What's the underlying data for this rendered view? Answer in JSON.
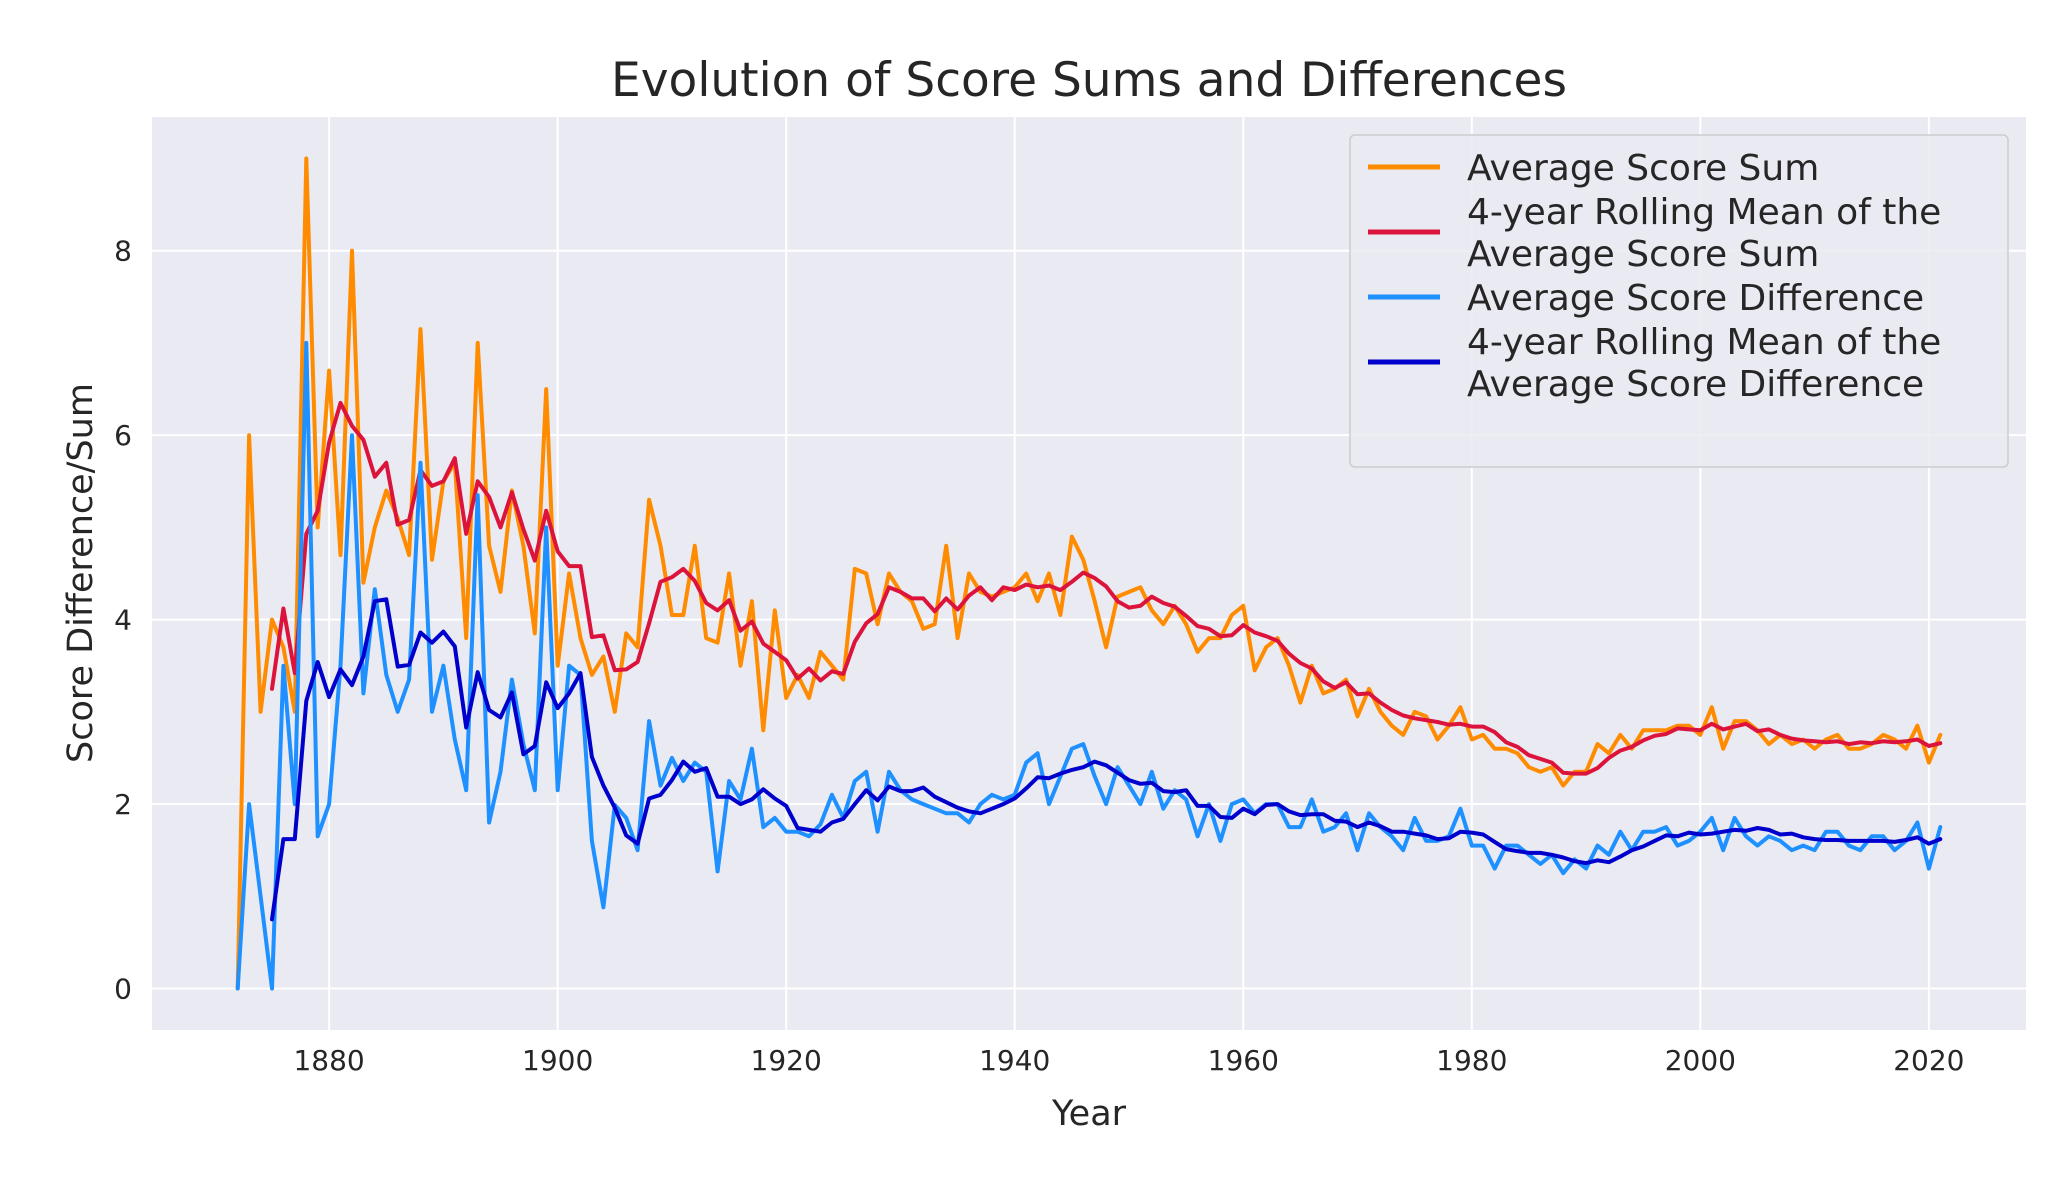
{
  "chart_data": {
    "type": "line",
    "title": "Evolution of Score Sums and Differences",
    "xlabel": "Year",
    "ylabel": "Score Difference/Sum",
    "xlim": [
      1864.5,
      2028.5
    ],
    "ylim": [
      -0.45,
      9.45
    ],
    "x_ticks": [
      1880,
      1900,
      1920,
      1940,
      1960,
      1980,
      2000,
      2020
    ],
    "y_ticks": [
      0,
      2,
      4,
      6,
      8
    ],
    "grid": true,
    "legend_position": "top-right",
    "x": [
      1872,
      1873,
      1874,
      1875,
      1876,
      1877,
      1878,
      1879,
      1880,
      1881,
      1882,
      1883,
      1884,
      1885,
      1886,
      1887,
      1888,
      1889,
      1890,
      1891,
      1892,
      1893,
      1894,
      1895,
      1896,
      1897,
      1898,
      1899,
      1900,
      1901,
      1902,
      1903,
      1904,
      1905,
      1906,
      1907,
      1908,
      1909,
      1910,
      1911,
      1912,
      1913,
      1914,
      1915,
      1916,
      1917,
      1918,
      1919,
      1920,
      1921,
      1922,
      1923,
      1924,
      1925,
      1926,
      1927,
      1928,
      1929,
      1930,
      1931,
      1932,
      1933,
      1934,
      1935,
      1936,
      1937,
      1938,
      1939,
      1940,
      1941,
      1942,
      1943,
      1944,
      1945,
      1946,
      1947,
      1948,
      1949,
      1950,
      1951,
      1952,
      1953,
      1954,
      1955,
      1956,
      1957,
      1958,
      1959,
      1960,
      1961,
      1962,
      1963,
      1964,
      1965,
      1966,
      1967,
      1968,
      1969,
      1970,
      1971,
      1972,
      1973,
      1974,
      1975,
      1976,
      1977,
      1978,
      1979,
      1980,
      1981,
      1982,
      1983,
      1984,
      1985,
      1986,
      1987,
      1988,
      1989,
      1990,
      1991,
      1992,
      1993,
      1994,
      1995,
      1996,
      1997,
      1998,
      1999,
      2000,
      2001,
      2002,
      2003,
      2004,
      2005,
      2006,
      2007,
      2008,
      2009,
      2010,
      2011,
      2012,
      2013,
      2014,
      2015,
      2016,
      2017,
      2018,
      2019,
      2020,
      2021
    ],
    "series": [
      {
        "name": "Average Score Sum",
        "color": "#ff8c00",
        "values": [
          0,
          6.0,
          3.0,
          4.0,
          3.7,
          3.0,
          9.0,
          5.0,
          6.7,
          4.7,
          8.0,
          4.4,
          5.0,
          5.4,
          5.1,
          4.7,
          7.15,
          4.65,
          5.5,
          5.7,
          3.8,
          7.0,
          4.8,
          4.3,
          5.4,
          4.8,
          3.85,
          6.5,
          3.5,
          4.5,
          3.8,
          3.4,
          3.6,
          3.0,
          3.85,
          3.7,
          5.3,
          4.8,
          4.05,
          4.05,
          4.8,
          3.8,
          3.75,
          4.5,
          3.5,
          4.2,
          2.8,
          4.1,
          3.15,
          3.4,
          3.15,
          3.65,
          3.5,
          3.35,
          4.55,
          4.5,
          3.95,
          4.5,
          4.3,
          4.2,
          3.9,
          3.95,
          4.8,
          3.8,
          4.5,
          4.3,
          4.25,
          4.3,
          4.35,
          4.5,
          4.2,
          4.5,
          4.05,
          4.9,
          4.65,
          4.2,
          3.7,
          4.25,
          4.3,
          4.35,
          4.1,
          3.95,
          4.15,
          3.95,
          3.65,
          3.8,
          3.8,
          4.05,
          4.15,
          3.45,
          3.7,
          3.8,
          3.5,
          3.1,
          3.5,
          3.2,
          3.25,
          3.35,
          2.95,
          3.25,
          3.0,
          2.85,
          2.75,
          3.0,
          2.95,
          2.7,
          2.85,
          3.05,
          2.7,
          2.75,
          2.6,
          2.6,
          2.55,
          2.4,
          2.35,
          2.4,
          2.2,
          2.35,
          2.35,
          2.65,
          2.55,
          2.75,
          2.6,
          2.8,
          2.8,
          2.8,
          2.85,
          2.85,
          2.75,
          3.05,
          2.6,
          2.9,
          2.9,
          2.8,
          2.65,
          2.75,
          2.65,
          2.7,
          2.6,
          2.7,
          2.75,
          2.6,
          2.6,
          2.65,
          2.75,
          2.7,
          2.6,
          2.85,
          2.45,
          2.75
        ]
      },
      {
        "name": "4-year Rolling Mean of the Average Score Sum",
        "color": "#dc143c",
        "values": [
          null,
          null,
          null,
          3.25,
          4.12,
          3.42,
          4.93,
          5.18,
          5.92,
          6.35,
          6.1,
          5.95,
          5.55,
          5.7,
          5.03,
          5.08,
          5.62,
          5.45,
          5.5,
          5.75,
          4.93,
          5.5,
          5.33,
          5.0,
          5.38,
          4.98,
          4.64,
          5.18,
          4.74,
          4.58,
          4.58,
          3.81,
          3.83,
          3.45,
          3.46,
          3.54,
          3.96,
          4.41,
          4.46,
          4.55,
          4.42,
          4.18,
          4.1,
          4.21,
          3.88,
          3.98,
          3.74,
          3.65,
          3.56,
          3.36,
          3.47,
          3.34,
          3.44,
          3.41,
          3.76,
          3.96,
          4.06,
          4.35,
          4.3,
          4.23,
          4.23,
          4.09,
          4.23,
          4.11,
          4.26,
          4.35,
          4.21,
          4.35,
          4.32,
          4.38,
          4.35,
          4.37,
          4.32,
          4.41,
          4.51,
          4.45,
          4.36,
          4.2,
          4.13,
          4.15,
          4.25,
          4.18,
          4.14,
          4.04,
          3.93,
          3.9,
          3.82,
          3.83,
          3.94,
          3.86,
          3.82,
          3.77,
          3.63,
          3.53,
          3.47,
          3.33,
          3.26,
          3.32,
          3.19,
          3.2,
          3.1,
          3.02,
          2.96,
          2.93,
          2.91,
          2.89,
          2.86,
          2.87,
          2.84,
          2.84,
          2.78,
          2.67,
          2.62,
          2.53,
          2.49,
          2.45,
          2.34,
          2.33,
          2.33,
          2.39,
          2.5,
          2.58,
          2.62,
          2.69,
          2.74,
          2.76,
          2.82,
          2.81,
          2.8,
          2.87,
          2.81,
          2.84,
          2.87,
          2.79,
          2.81,
          2.75,
          2.71,
          2.69,
          2.68,
          2.67,
          2.68,
          2.65,
          2.67,
          2.66,
          2.68,
          2.67,
          2.68,
          2.7,
          2.63,
          2.66
        ]
      },
      {
        "name": "Average Score Difference",
        "color": "#1e90ff",
        "values": [
          0,
          2.0,
          1.0,
          0,
          3.5,
          2.0,
          7.0,
          1.65,
          2.0,
          3.5,
          6.0,
          3.2,
          4.33,
          3.4,
          3.0,
          3.35,
          5.7,
          3.0,
          3.5,
          2.7,
          2.15,
          5.35,
          1.8,
          2.35,
          3.35,
          2.65,
          2.15,
          5.0,
          2.15,
          3.5,
          3.4,
          1.6,
          0.88,
          1.99,
          1.85,
          1.5,
          2.9,
          2.2,
          2.5,
          2.25,
          2.45,
          2.35,
          1.27,
          2.25,
          2.05,
          2.6,
          1.75,
          1.85,
          1.7,
          1.7,
          1.65,
          1.78,
          2.1,
          1.85,
          2.25,
          2.35,
          1.7,
          2.35,
          2.15,
          2.05,
          2.0,
          1.95,
          1.9,
          1.9,
          1.8,
          2.0,
          2.1,
          2.05,
          2.1,
          2.45,
          2.55,
          2.0,
          2.3,
          2.6,
          2.65,
          2.3,
          2.0,
          2.4,
          2.2,
          2.0,
          2.35,
          1.95,
          2.15,
          2.05,
          1.65,
          2.0,
          1.6,
          2.0,
          2.05,
          1.9,
          2.0,
          2.0,
          1.75,
          1.75,
          2.05,
          1.7,
          1.75,
          1.9,
          1.5,
          1.9,
          1.75,
          1.65,
          1.5,
          1.85,
          1.6,
          1.6,
          1.65,
          1.95,
          1.55,
          1.55,
          1.3,
          1.55,
          1.55,
          1.45,
          1.35,
          1.45,
          1.25,
          1.4,
          1.3,
          1.55,
          1.45,
          1.7,
          1.5,
          1.7,
          1.7,
          1.75,
          1.55,
          1.6,
          1.7,
          1.85,
          1.5,
          1.85,
          1.65,
          1.55,
          1.65,
          1.6,
          1.5,
          1.55,
          1.5,
          1.7,
          1.7,
          1.55,
          1.5,
          1.65,
          1.65,
          1.5,
          1.6,
          1.8,
          1.3,
          1.75
        ]
      },
      {
        "name": "4-year Rolling Mean of the Average Score Difference",
        "color": "#0000cd",
        "values": [
          null,
          null,
          null,
          0.75,
          1.62,
          1.62,
          3.12,
          3.54,
          3.16,
          3.46,
          3.29,
          3.6,
          4.2,
          4.22,
          3.49,
          3.51,
          3.86,
          3.75,
          3.87,
          3.71,
          2.83,
          3.43,
          3.02,
          2.94,
          3.21,
          2.54,
          2.63,
          3.32,
          3.04,
          3.2,
          3.42,
          2.51,
          2.2,
          1.96,
          1.66,
          1.57,
          2.06,
          2.1,
          2.26,
          2.46,
          2.35,
          2.39,
          2.08,
          2.08,
          2.0,
          2.05,
          2.16,
          2.06,
          1.98,
          1.74,
          1.72,
          1.7,
          1.8,
          1.84,
          2.0,
          2.15,
          2.04,
          2.19,
          2.14,
          2.14,
          2.18,
          2.08,
          2.02,
          1.96,
          1.92,
          1.9,
          1.95,
          2.0,
          2.06,
          2.17,
          2.29,
          2.28,
          2.33,
          2.37,
          2.4,
          2.46,
          2.42,
          2.34,
          2.26,
          2.22,
          2.23,
          2.14,
          2.13,
          2.15,
          1.98,
          1.98,
          1.86,
          1.85,
          1.95,
          1.89,
          1.99,
          2.0,
          1.92,
          1.88,
          1.89,
          1.89,
          1.82,
          1.81,
          1.75,
          1.8,
          1.76,
          1.7,
          1.7,
          1.68,
          1.66,
          1.62,
          1.63,
          1.7,
          1.69,
          1.67,
          1.59,
          1.51,
          1.49,
          1.47,
          1.47,
          1.45,
          1.42,
          1.38,
          1.36,
          1.39,
          1.37,
          1.43,
          1.5,
          1.54,
          1.6,
          1.66,
          1.65,
          1.69,
          1.67,
          1.68,
          1.7,
          1.72,
          1.71,
          1.74,
          1.72,
          1.67,
          1.68,
          1.64,
          1.62,
          1.61,
          1.61,
          1.6,
          1.6,
          1.6,
          1.6,
          1.59,
          1.61,
          1.64,
          1.57,
          1.62
        ]
      }
    ],
    "legend": [
      {
        "lines": [
          "Average Score Sum"
        ],
        "color": "#ff8c00"
      },
      {
        "lines": [
          "4-year Rolling Mean of the",
          "Average Score Sum"
        ],
        "color": "#dc143c"
      },
      {
        "lines": [
          "Average Score Difference"
        ],
        "color": "#1e90ff"
      },
      {
        "lines": [
          "4-year Rolling Mean of the",
          "Average Score Difference"
        ],
        "color": "#0000cd"
      }
    ]
  }
}
